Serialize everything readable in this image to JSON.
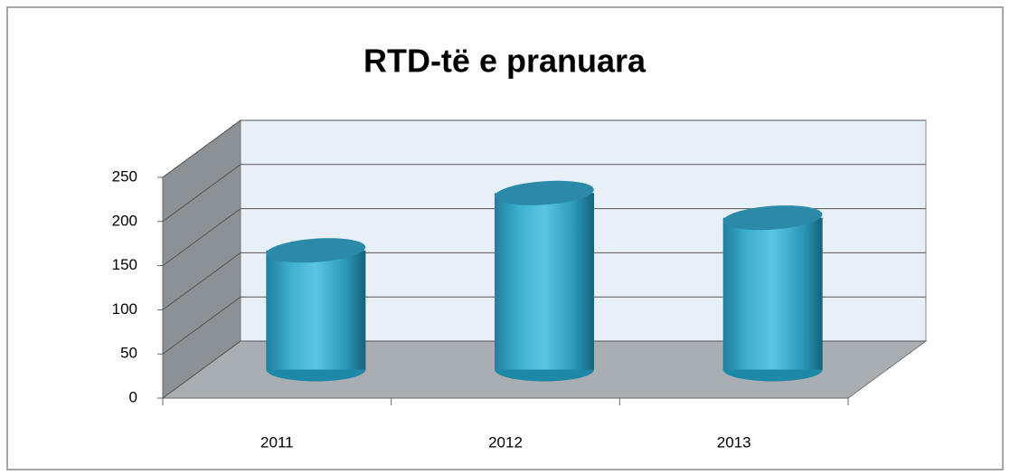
{
  "chart_data": {
    "type": "bar3d",
    "title": "RTD-të e pranuara",
    "categories": [
      "2011",
      "2012",
      "2013"
    ],
    "values": [
      135,
      200,
      172
    ],
    "color": "#3fb3d3",
    "ylim": [
      0,
      250
    ],
    "yticks": [
      0,
      50,
      100,
      150,
      200,
      250
    ],
    "grid": true
  }
}
